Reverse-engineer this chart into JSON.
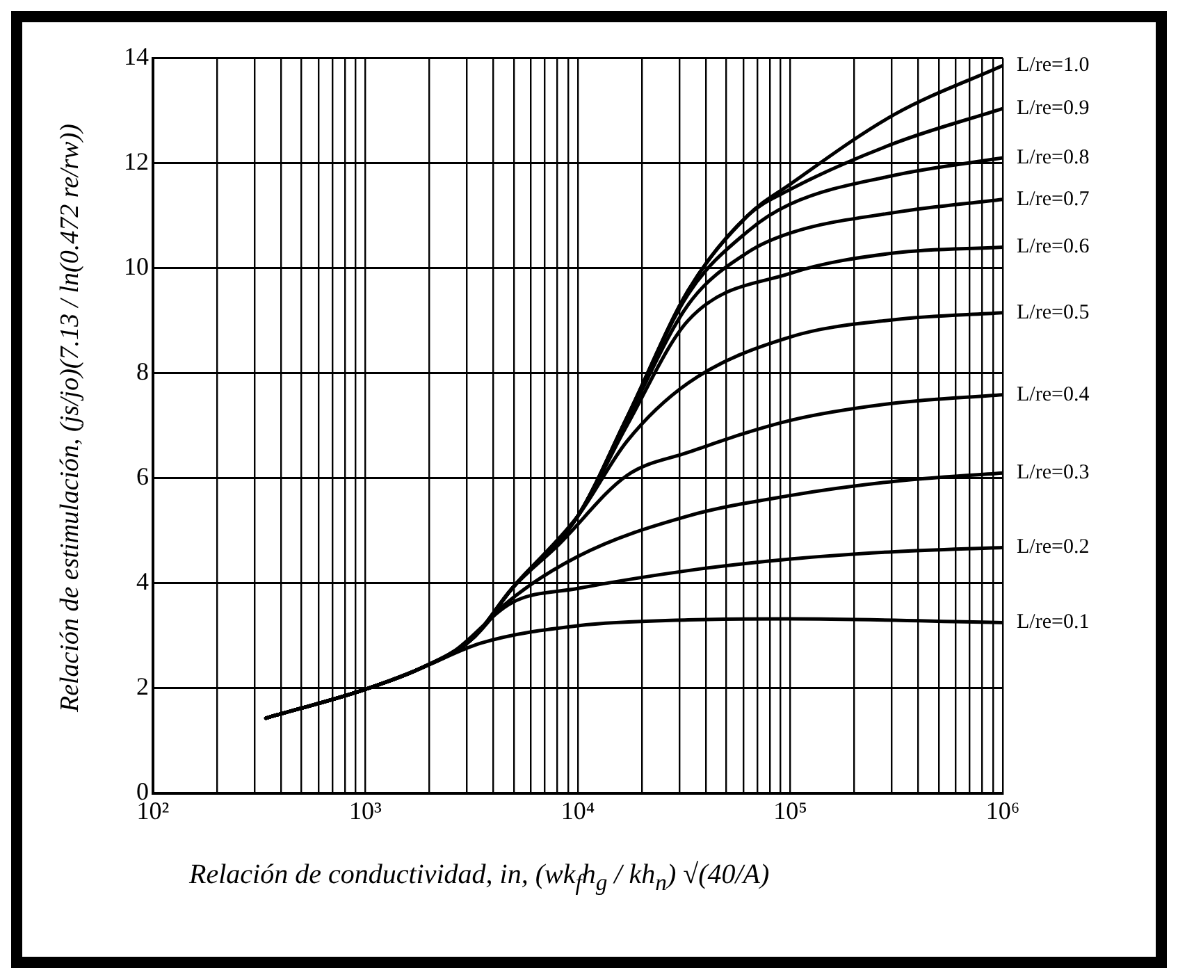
{
  "chart_data": {
    "type": "line",
    "xlabel": "Relación de conductividad, in, (wk$_{f}$h$_{g}$ / kh$_{n}$) √(40/A)",
    "ylabel": "Relación de estimulación, (js/jo)(7.13 / ln(0.472 re/rw))",
    "log": "x",
    "xlim": [
      100,
      1000000
    ],
    "ylim": [
      0,
      14
    ],
    "xticks": [
      {
        "value": 100,
        "label": "10²"
      },
      {
        "value": 200,
        "label": null
      },
      {
        "value": 300,
        "label": null
      },
      {
        "value": 400,
        "label": null
      },
      {
        "value": 500,
        "label": null
      },
      {
        "value": 600,
        "label": null
      },
      {
        "value": 700,
        "label": null
      },
      {
        "value": 800,
        "label": null
      },
      {
        "value": 900,
        "label": null
      },
      {
        "value": 1000,
        "label": "10³"
      },
      {
        "value": 2000,
        "label": null
      },
      {
        "value": 3000,
        "label": null
      },
      {
        "value": 4000,
        "label": null
      },
      {
        "value": 5000,
        "label": null
      },
      {
        "value": 6000,
        "label": null
      },
      {
        "value": 7000,
        "label": null
      },
      {
        "value": 8000,
        "label": null
      },
      {
        "value": 9000,
        "label": null
      },
      {
        "value": 10000,
        "label": "10⁴"
      },
      {
        "value": 20000,
        "label": null
      },
      {
        "value": 30000,
        "label": null
      },
      {
        "value": 40000,
        "label": null
      },
      {
        "value": 50000,
        "label": null
      },
      {
        "value": 60000,
        "label": null
      },
      {
        "value": 70000,
        "label": null
      },
      {
        "value": 80000,
        "label": null
      },
      {
        "value": 90000,
        "label": null
      },
      {
        "value": 100000,
        "label": "10⁵"
      },
      {
        "value": 200000,
        "label": null
      },
      {
        "value": 300000,
        "label": null
      },
      {
        "value": 400000,
        "label": null
      },
      {
        "value": 500000,
        "label": null
      },
      {
        "value": 600000,
        "label": null
      },
      {
        "value": 700000,
        "label": null
      },
      {
        "value": 800000,
        "label": null
      },
      {
        "value": 900000,
        "label": null
      },
      {
        "value": 1000000,
        "label": "10⁶"
      }
    ],
    "yticks": [
      0,
      2,
      4,
      6,
      8,
      10,
      12,
      14
    ],
    "grid": true,
    "legend": false,
    "marker": "none",
    "line_style": "solid",
    "series": [
      {
        "name": "L/re=1.0",
        "color": "#000000",
        "x": [
          340,
          1000,
          1800,
          3200,
          4900,
          10000,
          17000,
          33000,
          63000,
          100000,
          310000,
          1000000
        ],
        "values": [
          1.43,
          1.98,
          2.37,
          2.95,
          3.9,
          5.28,
          7.15,
          9.57,
          11.0,
          11.6,
          12.93,
          13.86
        ]
      },
      {
        "name": "L/re=0.9",
        "color": "#000000",
        "x": [
          340,
          1000,
          1800,
          3200,
          4900,
          10000,
          17000,
          33000,
          63000,
          100000,
          310000,
          1000000
        ],
        "values": [
          1.43,
          1.98,
          2.37,
          2.95,
          3.9,
          5.28,
          7.15,
          9.57,
          11.0,
          11.5,
          12.38,
          13.04
        ]
      },
      {
        "name": "L/re=0.8",
        "color": "#000000",
        "x": [
          340,
          1000,
          1800,
          3200,
          4900,
          10000,
          17000,
          33000,
          63000,
          100000,
          310000,
          1000000
        ],
        "values": [
          1.43,
          1.98,
          2.37,
          2.95,
          3.9,
          5.28,
          7.15,
          9.5,
          10.7,
          11.22,
          11.77,
          12.1
        ]
      },
      {
        "name": "L/re=0.7",
        "color": "#000000",
        "x": [
          340,
          1000,
          1800,
          3200,
          4900,
          10000,
          17000,
          33000,
          63000,
          100000,
          310000,
          1000000
        ],
        "values": [
          1.43,
          1.98,
          2.37,
          2.95,
          3.9,
          5.28,
          7.1,
          9.3,
          10.3,
          10.67,
          11.06,
          11.31
        ]
      },
      {
        "name": "L/re=0.6",
        "color": "#000000",
        "x": [
          340,
          1000,
          1800,
          3200,
          4900,
          10000,
          17000,
          33000,
          100000,
          310000,
          1000000
        ],
        "values": [
          1.43,
          1.98,
          2.37,
          2.95,
          3.9,
          5.28,
          7.0,
          9.0,
          9.9,
          10.29,
          10.4
        ]
      },
      {
        "name": "L/re=0.5",
        "color": "#000000",
        "x": [
          340,
          1000,
          1800,
          3200,
          4900,
          10000,
          17000,
          33000,
          100000,
          310000,
          1000000
        ],
        "values": [
          1.43,
          1.98,
          2.37,
          2.95,
          3.9,
          5.28,
          6.7,
          7.81,
          8.69,
          9.02,
          9.15
        ]
      },
      {
        "name": "L/re=0.4",
        "color": "#000000",
        "x": [
          340,
          1000,
          1800,
          3200,
          4900,
          8100,
          17000,
          33000,
          100000,
          310000,
          1000000
        ],
        "values": [
          1.43,
          1.98,
          2.37,
          2.95,
          3.9,
          4.73,
          6.05,
          6.49,
          7.1,
          7.43,
          7.59
        ]
      },
      {
        "name": "L/re=0.3",
        "color": "#000000",
        "x": [
          340,
          1000,
          1800,
          3200,
          4400,
          10000,
          33000,
          100000,
          310000,
          1000000
        ],
        "values": [
          1.43,
          1.98,
          2.37,
          2.95,
          3.55,
          4.51,
          5.28,
          5.67,
          5.94,
          6.1
        ]
      },
      {
        "name": "L/re=0.2",
        "color": "#000000",
        "x": [
          340,
          1000,
          1800,
          2600,
          4900,
          10000,
          33000,
          100000,
          310000,
          1000000
        ],
        "values": [
          1.43,
          1.98,
          2.37,
          2.7,
          3.63,
          3.9,
          4.24,
          4.46,
          4.6,
          4.68
        ]
      },
      {
        "name": "L/re=0.1",
        "color": "#000000",
        "x": [
          340,
          1000,
          1800,
          3500,
          10000,
          33000,
          100000,
          1000000
        ],
        "values": [
          1.43,
          1.98,
          2.37,
          2.86,
          3.19,
          3.3,
          3.32,
          3.25
        ]
      }
    ]
  }
}
